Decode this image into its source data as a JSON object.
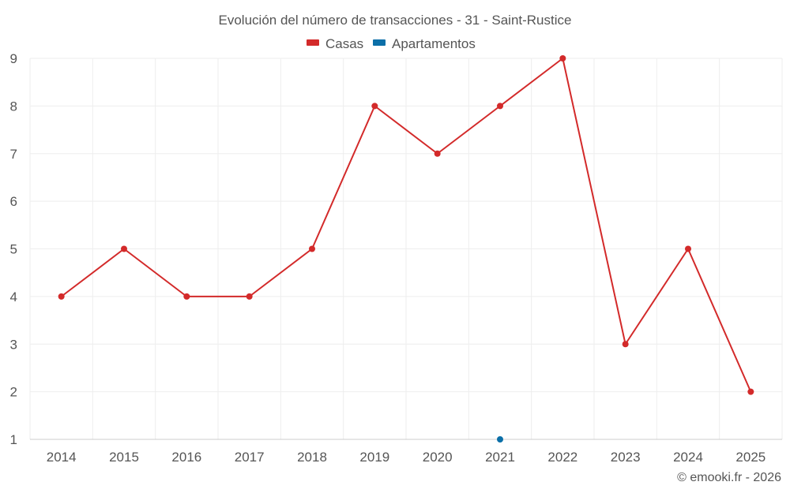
{
  "chart_data": {
    "type": "line",
    "title": "Evolución del número de transacciones - 31 - Saint-Rustice",
    "xlabel": "",
    "ylabel": "",
    "categories": [
      "2014",
      "2015",
      "2016",
      "2017",
      "2018",
      "2019",
      "2020",
      "2021",
      "2022",
      "2023",
      "2024",
      "2025"
    ],
    "ylim": [
      1,
      9
    ],
    "yticks": [
      "1",
      "2",
      "3",
      "4",
      "5",
      "6",
      "7",
      "8",
      "9"
    ],
    "grid": true,
    "legend_position": "top-center",
    "series": [
      {
        "name": "Casas",
        "color": "#d32a2a",
        "values": [
          4,
          5,
          4,
          4,
          5,
          8,
          7,
          8,
          9,
          3,
          5,
          2
        ]
      },
      {
        "name": "Apartamentos",
        "color": "#0b6fa8",
        "values": [
          null,
          null,
          null,
          null,
          null,
          null,
          null,
          1,
          null,
          null,
          null,
          null
        ]
      }
    ]
  },
  "credit": "© emooki.fr - 2026"
}
